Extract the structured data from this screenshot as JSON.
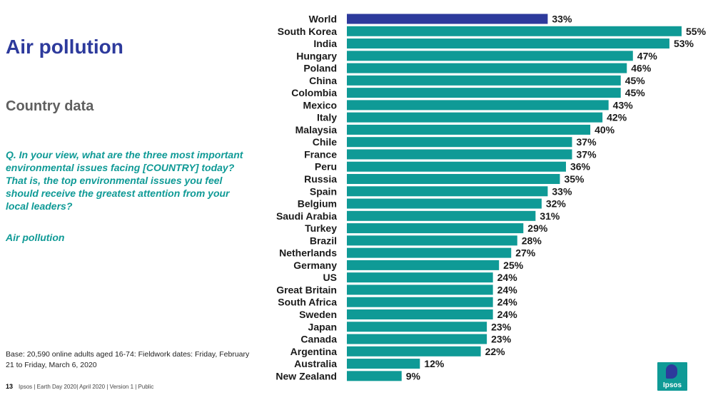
{
  "title": "Air pollution",
  "subtitle": "Country data",
  "question": "Q. In your view, what are the three most important environmental issues facing [COUNTRY] today? That is, the top environmental issues you feel should receive the greatest attention from your local leaders?",
  "topic": "Air pollution",
  "base_note": "Base: 20,590 online adults aged 16-74: Fieldwork dates: Friday, February 21 to Friday, March 6, 2020",
  "footer": {
    "page_number": "13",
    "text": "Ipsos | Earth Day 2020| April 2020 | Version 1 | Public"
  },
  "logo": {
    "text": "Ipsos"
  },
  "colors": {
    "world": "#2d3a9c",
    "countries": "#0f9a96",
    "title": "#2d3a9c",
    "accent": "#0f9a96"
  },
  "chart_data": {
    "type": "bar",
    "orientation": "horizontal",
    "categories": [
      "World",
      "South Korea",
      "India",
      "Hungary",
      "Poland",
      "China",
      "Colombia",
      "Mexico",
      "Italy",
      "Malaysia",
      "Chile",
      "France",
      "Peru",
      "Russia",
      "Spain",
      "Belgium",
      "Saudi Arabia",
      "Turkey",
      "Brazil",
      "Netherlands",
      "Germany",
      "US",
      "Great Britain",
      "South Africa",
      "Sweden",
      "Japan",
      "Canada",
      "Argentina",
      "Australia",
      "New Zealand"
    ],
    "values": [
      33,
      55,
      53,
      47,
      46,
      45,
      45,
      43,
      42,
      40,
      37,
      37,
      36,
      35,
      33,
      32,
      31,
      29,
      28,
      27,
      25,
      24,
      24,
      24,
      24,
      23,
      23,
      22,
      12,
      9
    ],
    "value_suffix": "%",
    "highlight_category": "World",
    "xlim": [
      0,
      55
    ],
    "grid": false,
    "legend": "none"
  }
}
